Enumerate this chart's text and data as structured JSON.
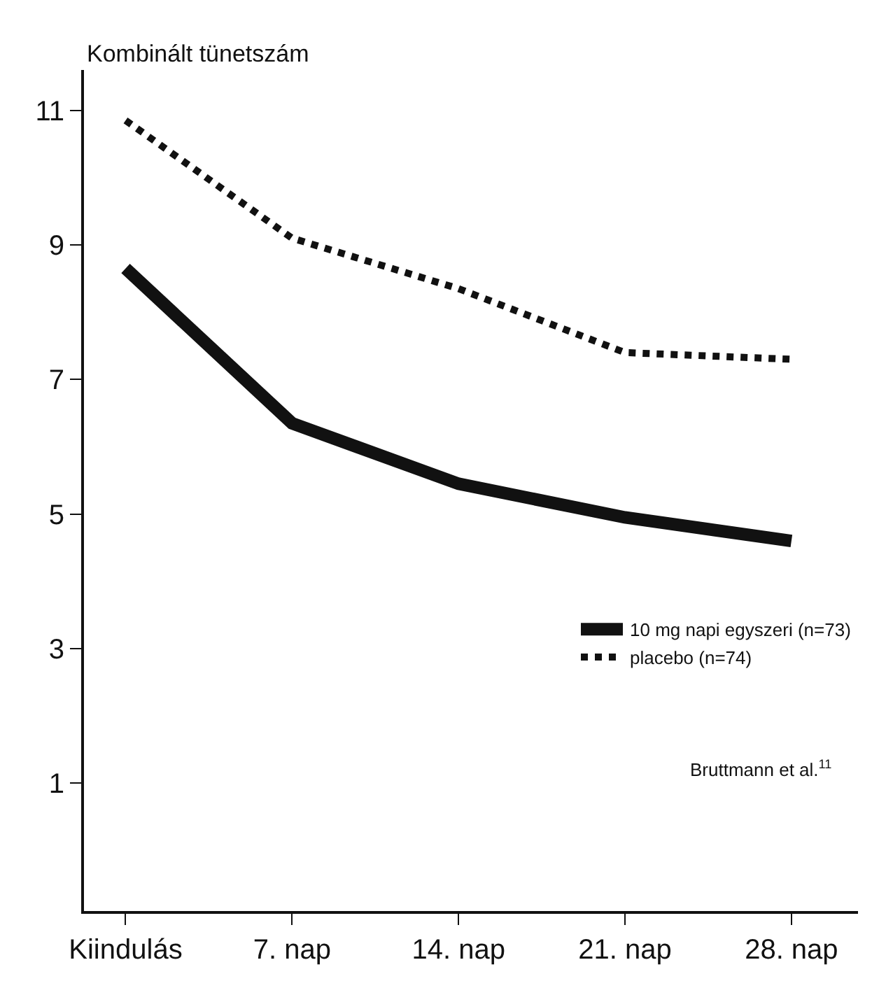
{
  "chart_data": {
    "type": "line",
    "ylabel": "Kombinált tünetszám",
    "categories": [
      "Kiindulás",
      "7. nap",
      "14. nap",
      "21. nap",
      "28. nap"
    ],
    "series": [
      {
        "name": "10 mg napi egyszeri (n=73)",
        "color": "#111111",
        "values": [
          8.65,
          6.35,
          5.45,
          4.95,
          4.6
        ],
        "line_style": "solid"
      },
      {
        "name": "placebo (n=74)",
        "color": "#111111",
        "values": [
          10.85,
          9.1,
          8.35,
          7.4,
          7.3
        ],
        "line_style": "dotted"
      }
    ],
    "ylim": [
      -0.9,
      11.6
    ],
    "yticks": [
      1,
      3,
      5,
      7,
      9,
      11
    ],
    "grid": false,
    "legend": "bottom right",
    "marker": "none",
    "annotations": [
      "Bruttmann et al.$^{11}$"
    ]
  }
}
